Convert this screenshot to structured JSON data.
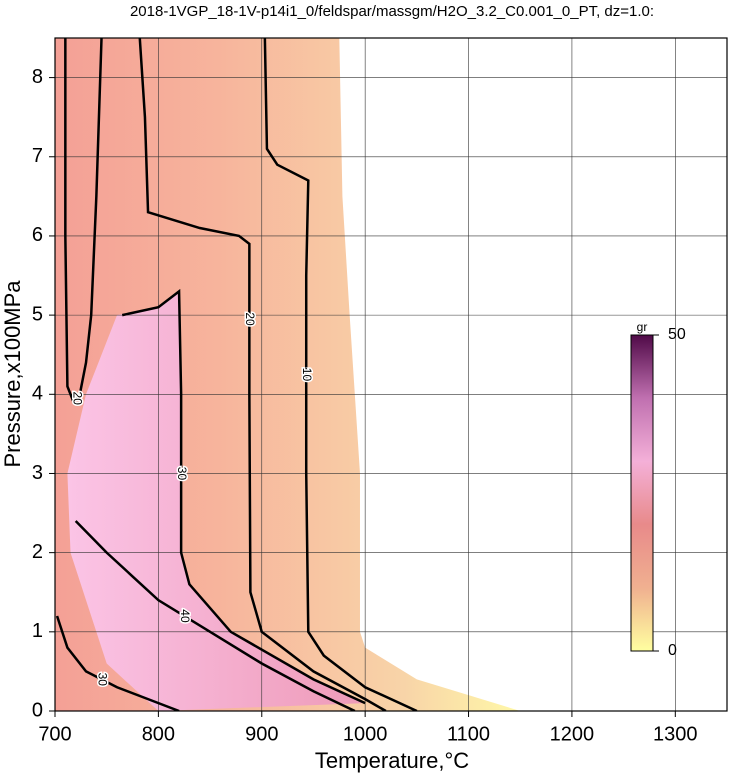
{
  "chart_data": {
    "type": "contour",
    "title": "2018-1VGP_18-1V-p14i1_0/feldspar/massgm/H2O_3.2_C0.001_0_PT, dz=1.0:",
    "xlabel": "Temperature,°C",
    "ylabel": "Pressure,x100MPa",
    "xlim": [
      700,
      1350
    ],
    "ylim": [
      0,
      8.5
    ],
    "xticks": [
      700,
      800,
      900,
      1000,
      1100,
      1200,
      1300
    ],
    "yticks": [
      0,
      1,
      2,
      3,
      4,
      5,
      6,
      7,
      8
    ],
    "grid": true,
    "domain": {
      "x": [
        700,
        975,
        978,
        985,
        990,
        995,
        995,
        1000,
        1050,
        1100,
        1150,
        700
      ],
      "y": [
        8.5,
        8.5,
        6.5,
        5,
        4,
        3,
        1,
        0.8,
        0.4,
        0.2,
        0,
        0
      ]
    },
    "high_region": {
      "x": [
        760,
        800,
        820,
        822,
        822,
        830,
        870,
        950,
        1000,
        800,
        750,
        715,
        712,
        730
      ],
      "y": [
        5.0,
        5.1,
        5.3,
        4,
        2.0,
        1.6,
        1.0,
        0.4,
        0.1,
        0.0,
        0.6,
        2.0,
        3.0,
        4.0
      ]
    },
    "contours": [
      {
        "level": 10,
        "x": [
          903,
          905,
          915,
          945,
          943,
          943,
          945,
          960,
          1000,
          1050
        ],
        "y": [
          8.5,
          7.1,
          6.9,
          6.7,
          5.5,
          3,
          1,
          0.7,
          0.3,
          0
        ]
      },
      {
        "level": 20,
        "x": [
          782,
          787,
          790,
          840,
          878,
          888,
          888,
          889,
          900,
          950,
          1000,
          1020
        ],
        "y": [
          8.5,
          7.5,
          6.3,
          6.1,
          6.0,
          5.9,
          4.0,
          1.5,
          1.0,
          0.5,
          0.15,
          0
        ]
      },
      {
        "level": 30,
        "x": [
          765,
          800,
          820,
          822,
          822,
          830,
          870,
          950,
          1000
        ],
        "y": [
          5.0,
          5.1,
          5.3,
          4,
          2.0,
          1.6,
          1.0,
          0.4,
          0.1
        ]
      },
      {
        "level": 40,
        "x": [
          720,
          750,
          775,
          800,
          850,
          900,
          950,
          990
        ],
        "y": [
          2.4,
          2.0,
          1.7,
          1.4,
          1.0,
          0.6,
          0.25,
          0
        ]
      },
      {
        "level": 20,
        "x": [
          710,
          710,
          712,
          718,
          724,
          730,
          735,
          740,
          745
        ],
        "y": [
          8.5,
          6,
          4.1,
          3.9,
          4.0,
          4.4,
          5.0,
          6.5,
          8.5
        ]
      },
      {
        "level": 30,
        "x": [
          702,
          712,
          730,
          760,
          790,
          820
        ],
        "y": [
          1.2,
          0.8,
          0.5,
          0.3,
          0.15,
          0
        ]
      }
    ],
    "colorbar": {
      "label": "gr",
      "lim": [
        0,
        50
      ],
      "ticks": [
        0,
        50
      ],
      "colors": [
        "#ffffa0",
        "#f0b090",
        "#e88a8a",
        "#f4b0d8",
        "#c070b0",
        "#500a48"
      ]
    }
  }
}
